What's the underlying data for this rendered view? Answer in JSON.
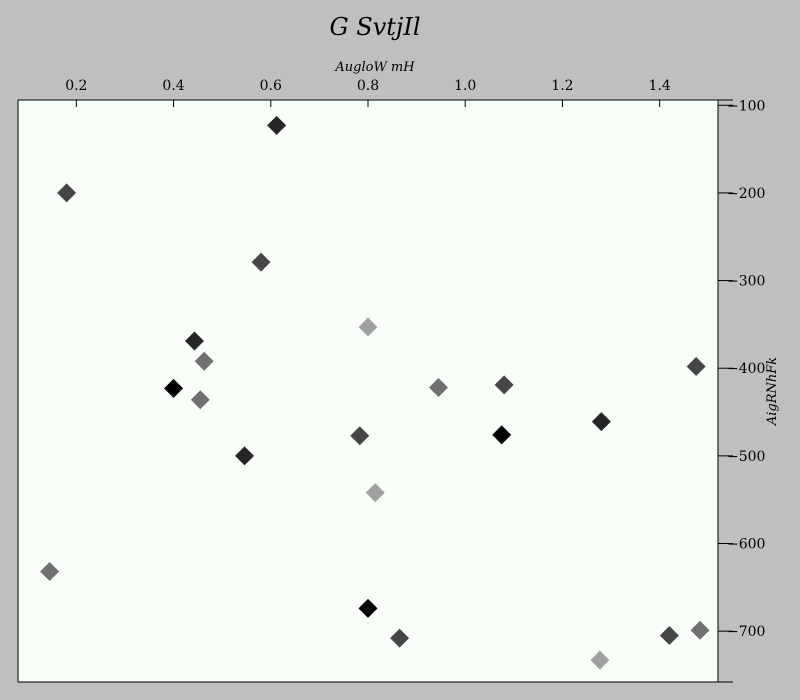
{
  "chart_data": {
    "type": "scatter",
    "title": "G SvtjIl",
    "xlabel": "AugloW mH",
    "ylabel": "AigRNhFk",
    "xlim": [
      0.08,
      1.52
    ],
    "ylim": [
      -758,
      -94
    ],
    "x_axis_position": "top",
    "y_axis_position": "right",
    "grid": false,
    "x_ticks": [
      0.2,
      0.4,
      0.6,
      0.8,
      1.0,
      1.2,
      1.4
    ],
    "x_tick_labels": [
      "0.2",
      "0.4",
      "0.6",
      "0.8",
      "1.0",
      "1.2",
      "1.4"
    ],
    "y_ticks": [
      -100,
      -200,
      -300,
      -400,
      -500,
      -600,
      -700
    ],
    "y_tick_labels": [
      "−100",
      "−200",
      "−300",
      "−400",
      "−500",
      "−600",
      "−700"
    ],
    "background_color": "#f8fff8",
    "figure_color": "#bfbfbf",
    "marker": "diamond",
    "points": [
      {
        "x": 0.612,
        "y": -123,
        "color": "#262626"
      },
      {
        "x": 0.18,
        "y": -200,
        "color": "#464646"
      },
      {
        "x": 0.58,
        "y": -279,
        "color": "#464646"
      },
      {
        "x": 0.8,
        "y": -353,
        "color": "#a0a0a0"
      },
      {
        "x": 0.443,
        "y": -369,
        "color": "#262626"
      },
      {
        "x": 0.463,
        "y": -392,
        "color": "#707070"
      },
      {
        "x": 0.4,
        "y": -423,
        "color": "#000000"
      },
      {
        "x": 0.455,
        "y": -436,
        "color": "#707070"
      },
      {
        "x": 0.945,
        "y": -422,
        "color": "#707070"
      },
      {
        "x": 1.08,
        "y": -419,
        "color": "#464646"
      },
      {
        "x": 1.475,
        "y": -398,
        "color": "#464646"
      },
      {
        "x": 1.28,
        "y": -461,
        "color": "#262626"
      },
      {
        "x": 0.783,
        "y": -477,
        "color": "#464646"
      },
      {
        "x": 1.075,
        "y": -476,
        "color": "#000000"
      },
      {
        "x": 0.546,
        "y": -500,
        "color": "#262626"
      },
      {
        "x": 0.815,
        "y": -542,
        "color": "#a0a0a0"
      },
      {
        "x": 0.145,
        "y": -632,
        "color": "#707070"
      },
      {
        "x": 0.8,
        "y": -674,
        "color": "#000000"
      },
      {
        "x": 0.865,
        "y": -708,
        "color": "#464646"
      },
      {
        "x": 1.42,
        "y": -705,
        "color": "#464646"
      },
      {
        "x": 1.483,
        "y": -699,
        "color": "#707070"
      },
      {
        "x": 1.277,
        "y": -733,
        "color": "#a0a0a0"
      }
    ]
  }
}
